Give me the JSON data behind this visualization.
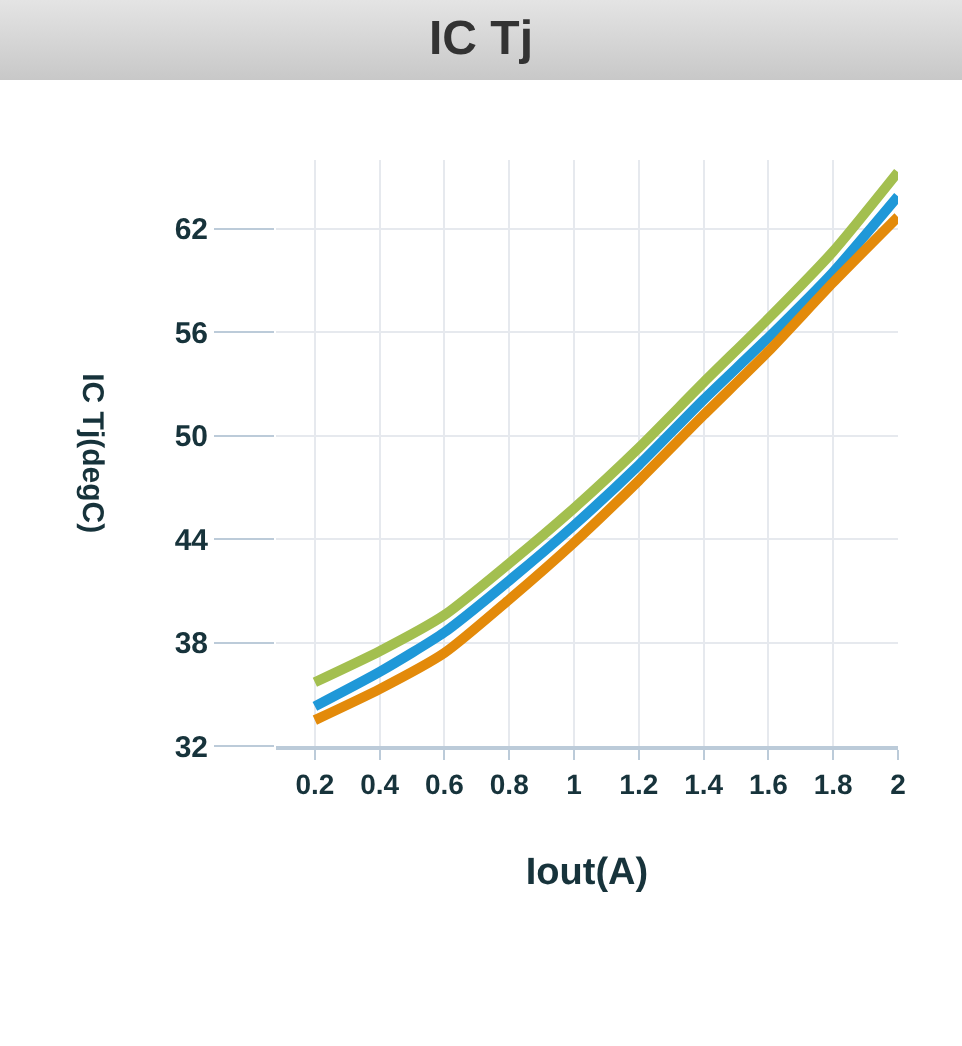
{
  "chart_data": {
    "type": "line",
    "title": "IC Tj",
    "xlabel": "Iout(A)",
    "ylabel": "IC Tj(degC)",
    "x": [
      0.2,
      0.4,
      0.6,
      0.8,
      1.0,
      1.2,
      1.4,
      1.6,
      1.8,
      2.0
    ],
    "series": [
      {
        "color": "#a3bf4f",
        "values": [
          35.7,
          37.5,
          39.6,
          42.6,
          45.8,
          49.3,
          53.1,
          56.8,
          60.7,
          65.3
        ]
      },
      {
        "color": "#1f98d8",
        "values": [
          34.3,
          36.3,
          38.6,
          41.6,
          44.8,
          48.3,
          52.1,
          55.7,
          59.5,
          63.9
        ]
      },
      {
        "color": "#e38a0a",
        "values": [
          33.5,
          35.3,
          37.4,
          40.5,
          43.8,
          47.4,
          51.2,
          54.9,
          58.9,
          62.7
        ]
      }
    ],
    "xlim": [
      0.08,
      2
    ],
    "xticks": [
      {
        "value": 0.2,
        "label": "0.2"
      },
      {
        "value": 0.4,
        "label": "0.4"
      },
      {
        "value": 0.6,
        "label": "0.6"
      },
      {
        "value": 0.8,
        "label": "0.8"
      },
      {
        "value": 1,
        "label": "1"
      },
      {
        "value": 1.2,
        "label": "1.2"
      },
      {
        "value": 1.4,
        "label": "1.4"
      },
      {
        "value": 1.6,
        "label": "1.6"
      },
      {
        "value": 1.8,
        "label": "1.8"
      },
      {
        "value": 2,
        "label": "2"
      }
    ],
    "ylim": [
      32,
      66
    ],
    "yticks": [
      32,
      38,
      44,
      50,
      56,
      62
    ],
    "grid": true,
    "marker": "none",
    "line_style": "solid"
  }
}
